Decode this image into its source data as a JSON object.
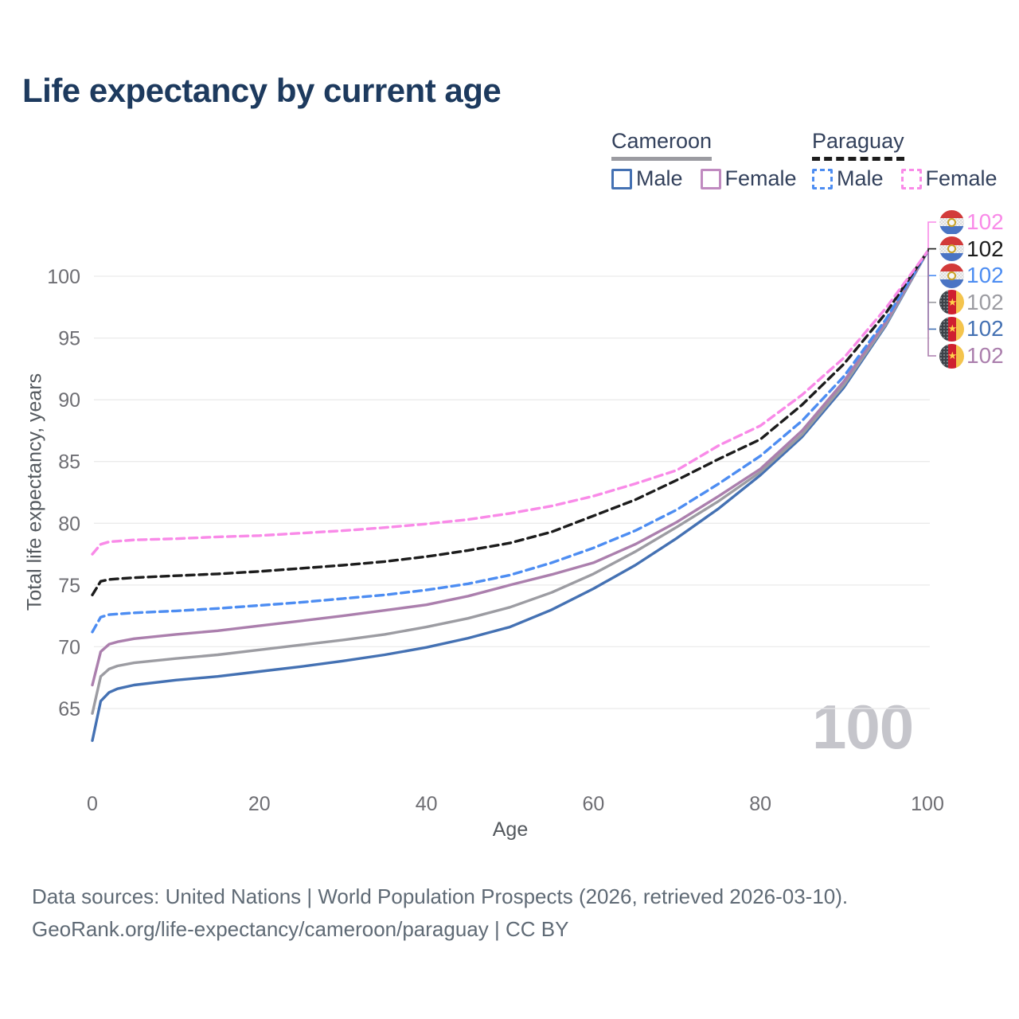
{
  "title": "Life expectancy by current age",
  "legend": {
    "groups": [
      {
        "label": "Cameroon",
        "line_style": "solid",
        "underline_color": "#9b9ba1",
        "items": [
          {
            "label": "Male",
            "color": "#4471b3",
            "dash": false
          },
          {
            "label": "Female",
            "color": "#c08ac0",
            "dash": false
          }
        ]
      },
      {
        "label": "Paraguay",
        "line_style": "dashed",
        "underline_color": "#1c1c1c",
        "items": [
          {
            "label": "Male",
            "color": "#4d8df2",
            "dash": true
          },
          {
            "label": "Female",
            "color": "#f98ae8",
            "dash": true
          }
        ]
      }
    ]
  },
  "watermark": "100",
  "footer": {
    "line1": "Data sources: United Nations | World Population Prospects (2026, retrieved 2026-03-10).",
    "line2": "GeoRank.org/life-expectancy/cameroon/paraguay | CC BY"
  },
  "flag_palette": {
    "py": {
      "top": "#d23a3a",
      "mid": "#f3f3f3",
      "mid_checker": "#dcdcdc",
      "bottom": "#4a74c4",
      "emblem": "#c9a227"
    },
    "cm": {
      "left": "#3d4349",
      "left_dot": "#8a9096",
      "mid": "#cf2030",
      "right": "#f4c44d",
      "star": "#ffd24a"
    }
  },
  "chart_data": {
    "type": "line",
    "title": "Life expectancy by current age",
    "xlabel": "Age",
    "ylabel": "Total life expectancy, years",
    "x_ticks": [
      0,
      20,
      40,
      60,
      80,
      100
    ],
    "y_ticks": [
      65,
      70,
      75,
      80,
      85,
      90,
      95,
      100
    ],
    "xlim": [
      0,
      100
    ],
    "ylim": [
      62,
      103
    ],
    "grid": "horizontal",
    "legend_position": "top-right",
    "ages": [
      0,
      1,
      2,
      3,
      5,
      10,
      15,
      20,
      25,
      30,
      35,
      40,
      45,
      50,
      55,
      60,
      65,
      70,
      75,
      80,
      85,
      90,
      95,
      100
    ],
    "series": [
      {
        "name": "Cameroon Male",
        "country": "Cameroon",
        "sex": "Male",
        "color": "#4471b3",
        "dash": false,
        "values": [
          62.4,
          65.6,
          66.3,
          66.6,
          66.9,
          67.3,
          67.6,
          68.0,
          68.4,
          68.85,
          69.35,
          69.95,
          70.7,
          71.6,
          73.0,
          74.7,
          76.6,
          78.8,
          81.2,
          83.9,
          87.0,
          91.0,
          96.0,
          102
        ]
      },
      {
        "name": "Cameroon All",
        "country": "Cameroon",
        "sex": "All",
        "color": "#9c9ca2",
        "dash": false,
        "values": [
          64.6,
          67.6,
          68.2,
          68.45,
          68.7,
          69.05,
          69.35,
          69.75,
          70.15,
          70.55,
          71.0,
          71.6,
          72.3,
          73.2,
          74.4,
          75.9,
          77.7,
          79.7,
          81.8,
          84.15,
          87.2,
          91.2,
          96.1,
          102
        ]
      },
      {
        "name": "Cameroon Female",
        "country": "Cameroon",
        "sex": "Female",
        "color": "#ab7fad",
        "dash": false,
        "values": [
          66.9,
          69.6,
          70.2,
          70.4,
          70.65,
          71.0,
          71.3,
          71.7,
          72.1,
          72.5,
          72.95,
          73.4,
          74.1,
          75.0,
          75.85,
          76.8,
          78.3,
          80.1,
          82.2,
          84.4,
          87.5,
          91.5,
          96.3,
          102
        ]
      },
      {
        "name": "Paraguay Male",
        "country": "Paraguay",
        "sex": "Male",
        "color": "#4d8df2",
        "dash": true,
        "values": [
          71.2,
          72.4,
          72.6,
          72.65,
          72.75,
          72.9,
          73.1,
          73.35,
          73.6,
          73.9,
          74.2,
          74.6,
          75.1,
          75.8,
          76.8,
          78.0,
          79.4,
          81.1,
          83.2,
          85.45,
          88.3,
          91.9,
          96.5,
          102
        ]
      },
      {
        "name": "Paraguay All",
        "country": "Paraguay",
        "sex": "All",
        "color": "#1c1c1c",
        "dash": true,
        "values": [
          74.2,
          75.3,
          75.45,
          75.5,
          75.6,
          75.75,
          75.9,
          76.1,
          76.35,
          76.6,
          76.9,
          77.3,
          77.8,
          78.4,
          79.3,
          80.6,
          81.9,
          83.5,
          85.2,
          86.8,
          89.6,
          92.9,
          97.0,
          102
        ]
      },
      {
        "name": "Paraguay Female",
        "country": "Paraguay",
        "sex": "Female",
        "color": "#f98ae8",
        "dash": true,
        "values": [
          77.5,
          78.3,
          78.5,
          78.55,
          78.65,
          78.75,
          78.9,
          79.0,
          79.2,
          79.4,
          79.65,
          79.95,
          80.3,
          80.8,
          81.4,
          82.2,
          83.2,
          84.3,
          86.3,
          87.9,
          90.4,
          93.4,
          97.4,
          102
        ]
      }
    ],
    "end_labels": [
      {
        "country": "Paraguay",
        "flag": "py",
        "value": "102",
        "color": "#f98ae8",
        "series": "Paraguay Female"
      },
      {
        "country": "Paraguay",
        "flag": "py",
        "value": "102",
        "color": "#1c1c1c",
        "series": "Paraguay All"
      },
      {
        "country": "Paraguay",
        "flag": "py",
        "value": "102",
        "color": "#4d8df2",
        "series": "Paraguay Male"
      },
      {
        "country": "Cameroon",
        "flag": "cm",
        "value": "102",
        "color": "#9c9ca2",
        "series": "Cameroon All"
      },
      {
        "country": "Cameroon",
        "flag": "cm",
        "value": "102",
        "color": "#4471b3",
        "series": "Cameroon Male"
      },
      {
        "country": "Cameroon",
        "flag": "cm",
        "value": "102",
        "color": "#ab7fad",
        "series": "Cameroon Female"
      }
    ]
  }
}
